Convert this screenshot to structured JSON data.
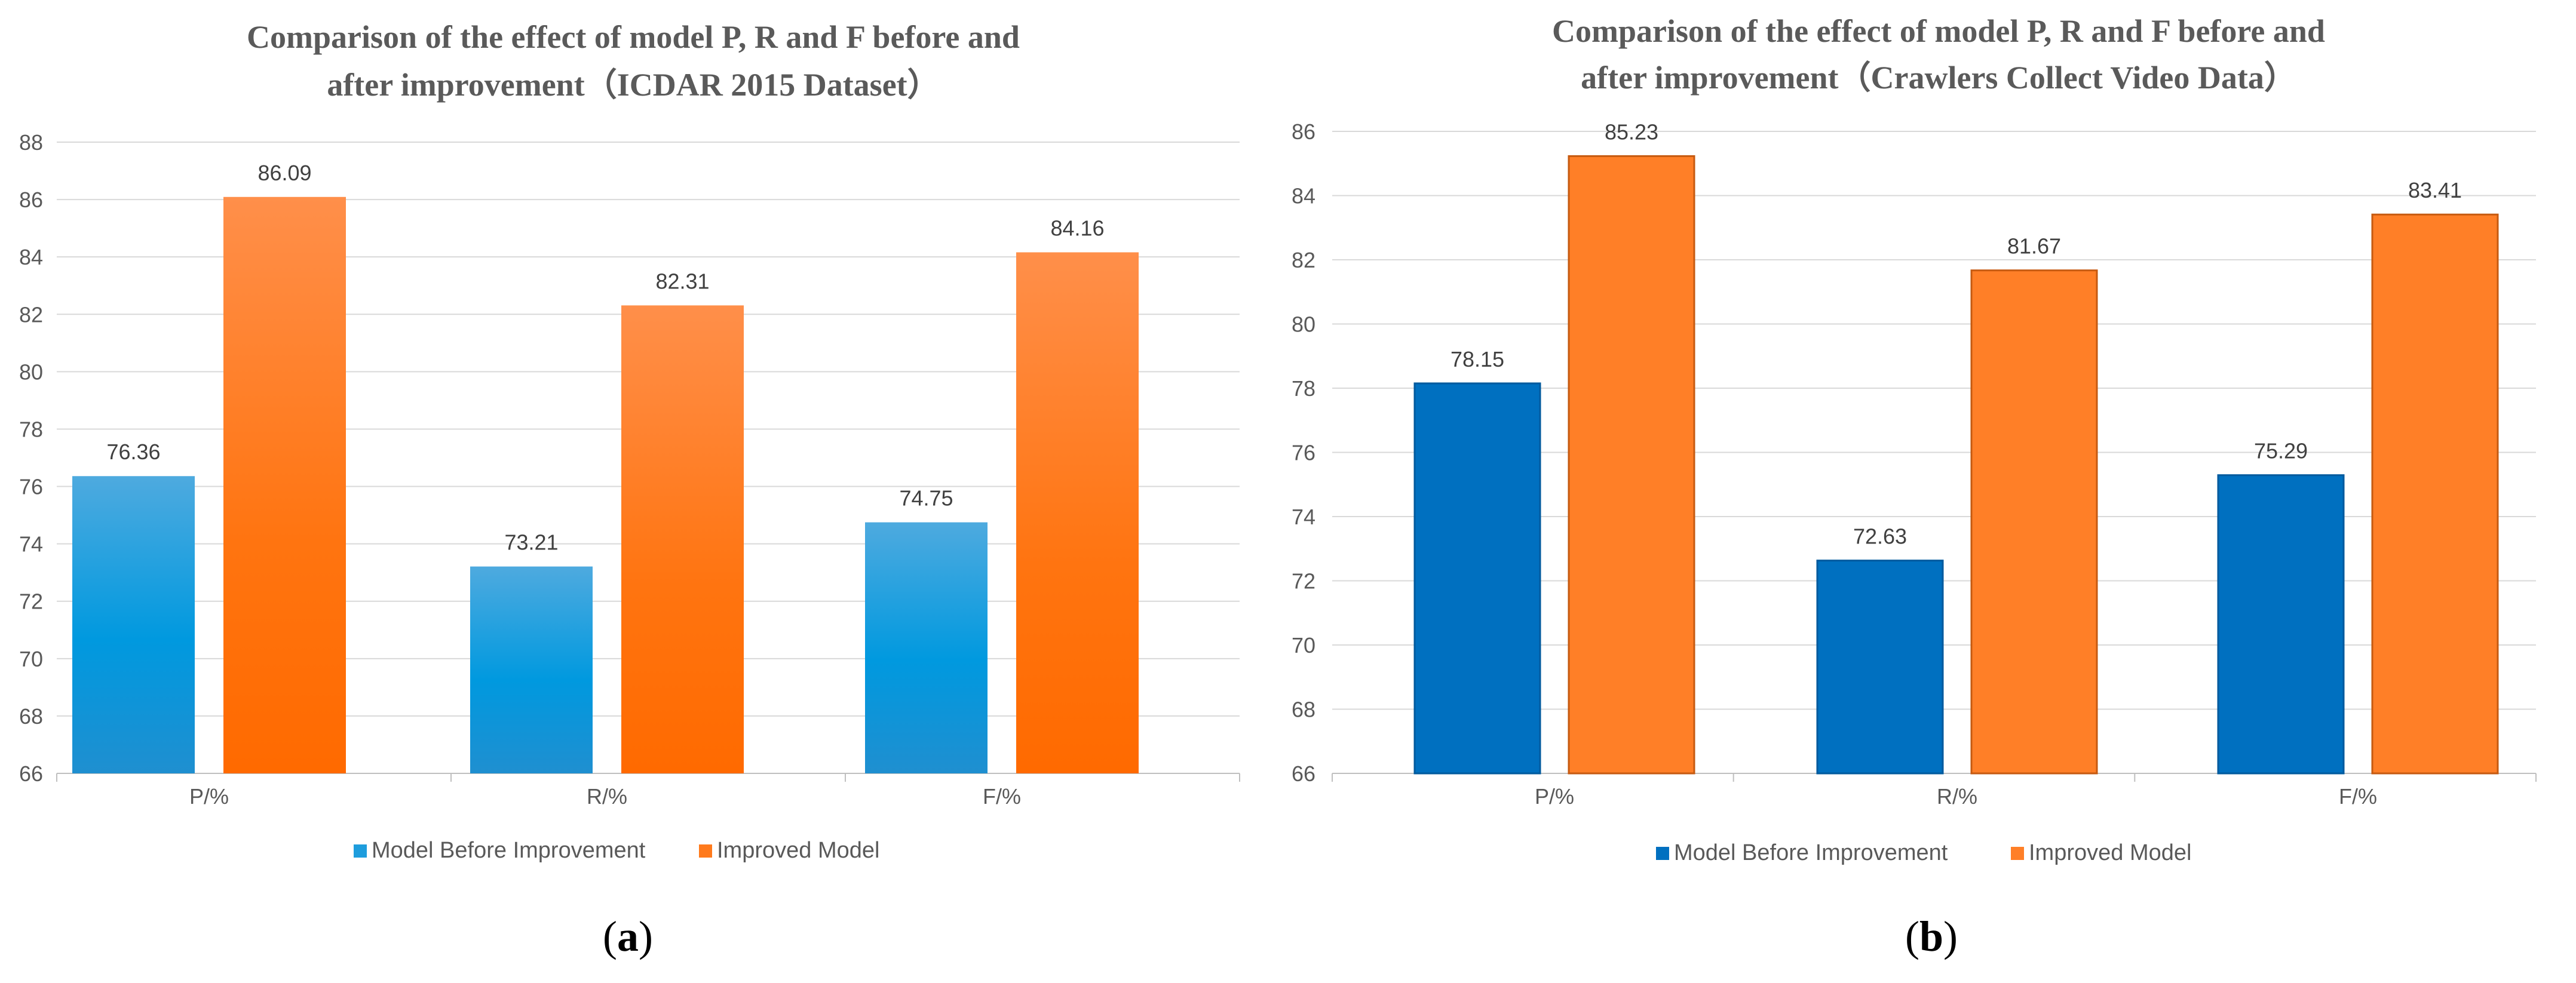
{
  "chart_data": [
    {
      "type": "bar",
      "title_line1": "Comparison of the effect of model P, R and F before and",
      "title_line2": "after improvement（ICDAR 2015 Dataset）",
      "categories": [
        "P/%",
        "R/%",
        "F/%"
      ],
      "series": [
        {
          "name": "Model Before Improvement",
          "values": [
            76.36,
            73.21,
            74.75
          ],
          "color": "#1e9ddd"
        },
        {
          "name": "Improved Model",
          "values": [
            86.09,
            82.31,
            84.16
          ],
          "color": "#ff7a1c"
        }
      ],
      "ylim": [
        66,
        88
      ],
      "yticks": [
        "66",
        "68",
        "70",
        "72",
        "74",
        "76",
        "78",
        "80",
        "82",
        "84",
        "86",
        "88"
      ],
      "data_labels": [
        [
          "76.36",
          "73.21",
          "74.75"
        ],
        [
          "86.09",
          "82.31",
          "84.16"
        ]
      ],
      "legend_position": "bottom",
      "caption": "a"
    },
    {
      "type": "bar",
      "title_line1": "Comparison of the effect of model P, R and F before and",
      "title_line2": "after improvement（Crawlers Collect Video Data）",
      "categories": [
        "P/%",
        "R/%",
        "F/%"
      ],
      "series": [
        {
          "name": "Model Before Improvement",
          "values": [
            78.15,
            72.63,
            75.29
          ],
          "color": "#0070c0"
        },
        {
          "name": "Improved Model",
          "values": [
            85.23,
            81.67,
            83.41
          ],
          "color": "#ff7f27"
        }
      ],
      "ylim": [
        66,
        86
      ],
      "yticks": [
        "66",
        "68",
        "70",
        "72",
        "74",
        "76",
        "78",
        "80",
        "82",
        "84",
        "86"
      ],
      "data_labels": [
        [
          "78.15",
          "72.63",
          "75.29"
        ],
        [
          "85.23",
          "81.67",
          "83.41"
        ]
      ],
      "legend_position": "bottom",
      "caption": "b"
    }
  ]
}
